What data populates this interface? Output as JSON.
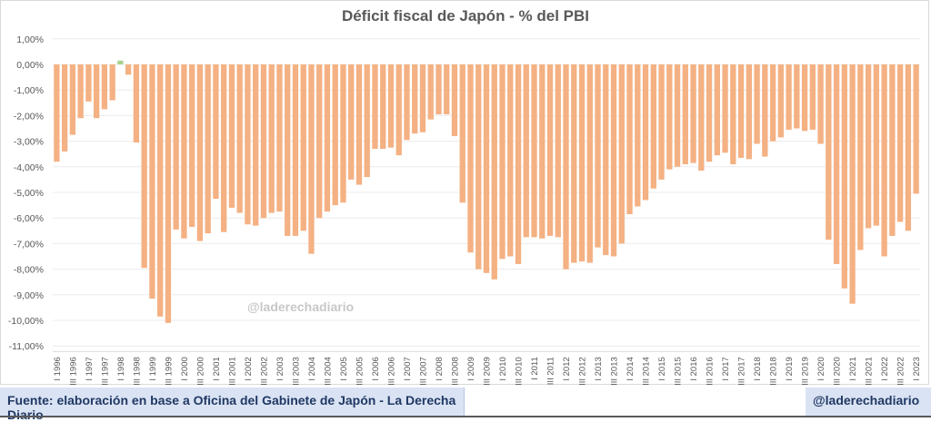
{
  "colors": {
    "negative_bar": "#f4b183",
    "positive_bar": "#a9d18e",
    "gridline": "#ececec",
    "axis_text": "#595959",
    "title": "#595959",
    "footer_bg": "#dae3f3",
    "footer_text": "#203864"
  },
  "footer": {
    "source": "Fuente: elaboración en base a Oficina del Gabinete de Japón - La Derecha Diario",
    "handle": "@laderechadiario"
  },
  "watermark": "@laderechadiario",
  "chart_data": {
    "type": "bar",
    "title": "Déficit fiscal de Japón - % del PBI",
    "xlabel": "",
    "ylabel": "",
    "ylim": [
      -11,
      1
    ],
    "yticks": [
      1,
      0,
      -1,
      -2,
      -3,
      -4,
      -5,
      -6,
      -7,
      -8,
      -9,
      -10,
      -11
    ],
    "ytick_labels": [
      "1,00%",
      "0,00%",
      "-1,00%",
      "-2,00%",
      "-3,00%",
      "-4,00%",
      "-5,00%",
      "-6,00%",
      "-7,00%",
      "-8,00%",
      "-9,00%",
      "-10,00%",
      "-11,00%"
    ],
    "grid": true,
    "legend": "none",
    "label_every": 2,
    "categories": [
      "I 1996",
      "II 1996",
      "III 1996",
      "IV 1996",
      "I 1997",
      "II 1997",
      "III 1997",
      "IV 1997",
      "I 1998",
      "II 1998",
      "III 1998",
      "IV 1998",
      "I 1999",
      "II 1999",
      "III 1999",
      "IV 1999",
      "I 2000",
      "II 2000",
      "III 2000",
      "IV 2000",
      "I 2001",
      "II 2001",
      "III 2001",
      "IV 2001",
      "I 2002",
      "II 2002",
      "III 2002",
      "IV 2002",
      "I 2003",
      "II 2003",
      "III 2003",
      "IV 2003",
      "I 2004",
      "II 2004",
      "III 2004",
      "IV 2004",
      "I 2005",
      "II 2005",
      "III 2005",
      "IV 2005",
      "I 2006",
      "II 2006",
      "III 2006",
      "IV 2006",
      "I 2007",
      "II 2007",
      "III 2007",
      "IV 2007",
      "I 2008",
      "II 2008",
      "III 2008",
      "IV 2008",
      "I 2009",
      "II 2009",
      "III 2009",
      "IV 2009",
      "I 2010",
      "II 2010",
      "III 2010",
      "IV 2010",
      "I 2011",
      "II 2011",
      "III 2011",
      "IV 2011",
      "I 2012",
      "II 2012",
      "III 2012",
      "IV 2012",
      "I 2013",
      "II 2013",
      "III 2013",
      "IV 2013",
      "I 2014",
      "II 2014",
      "III 2014",
      "IV 2014",
      "I 2015",
      "II 2015",
      "III 2015",
      "IV 2015",
      "I 2016",
      "II 2016",
      "III 2016",
      "IV 2016",
      "I 2017",
      "II 2017",
      "III 2017",
      "IV 2017",
      "I 2018",
      "II 2018",
      "III 2018",
      "IV 2018",
      "I 2019",
      "II 2019",
      "III 2019",
      "IV 2019",
      "I 2020",
      "II 2020",
      "III 2020",
      "IV 2020",
      "I 2021",
      "II 2021",
      "III 2021",
      "IV 2021",
      "I 2022",
      "II 2022",
      "III 2022",
      "IV 2022",
      "I 2023"
    ],
    "values": [
      -3.8,
      -3.4,
      -2.75,
      -2.1,
      -1.45,
      -2.1,
      -1.75,
      -1.4,
      0.15,
      -0.4,
      -3.05,
      -7.95,
      -9.15,
      -9.85,
      -10.1,
      -6.45,
      -6.8,
      -6.35,
      -6.9,
      -6.6,
      -5.25,
      -6.55,
      -5.6,
      -5.8,
      -6.25,
      -6.3,
      -6.0,
      -5.8,
      -5.75,
      -6.7,
      -6.7,
      -6.5,
      -7.4,
      -6.0,
      -5.75,
      -5.5,
      -5.4,
      -4.5,
      -4.7,
      -4.4,
      -3.3,
      -3.3,
      -3.25,
      -3.55,
      -2.95,
      -2.7,
      -2.65,
      -2.15,
      -1.95,
      -1.95,
      -2.8,
      -5.4,
      -7.35,
      -8.0,
      -8.15,
      -8.4,
      -7.6,
      -7.5,
      -7.8,
      -6.75,
      -6.75,
      -6.8,
      -6.7,
      -6.75,
      -8.0,
      -7.75,
      -7.7,
      -7.75,
      -7.15,
      -7.45,
      -7.5,
      -7.0,
      -5.85,
      -5.55,
      -5.3,
      -4.85,
      -4.5,
      -4.1,
      -4.0,
      -3.9,
      -3.85,
      -4.15,
      -3.8,
      -3.55,
      -3.45,
      -3.9,
      -3.65,
      -3.7,
      -3.1,
      -3.6,
      -3.0,
      -2.85,
      -2.55,
      -2.5,
      -2.6,
      -2.55,
      -3.1,
      -6.85,
      -7.8,
      -8.75,
      -9.35,
      -7.25,
      -6.4,
      -6.3,
      -7.5,
      -6.7,
      -6.15,
      -6.5,
      -5.05
    ]
  }
}
